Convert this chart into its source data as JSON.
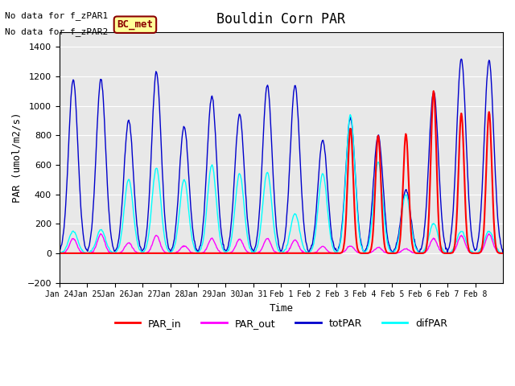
{
  "title": "Bouldin Corn PAR",
  "xlabel": "Time",
  "ylabel": "PAR (umol/m2/s)",
  "ylim": [
    -200,
    1500
  ],
  "yticks": [
    -200,
    0,
    200,
    400,
    600,
    800,
    1000,
    1200,
    1400
  ],
  "no_data_text": [
    "No data for f_zPAR1",
    "No data for f_zPAR2"
  ],
  "bc_met_label": "BC_met",
  "colors": {
    "PAR_in": "#ff0000",
    "PAR_out": "#ff00ff",
    "totPAR": "#0000cc",
    "difPAR": "#00ffff"
  },
  "legend_labels": [
    "PAR_in",
    "PAR_out",
    "totPAR",
    "difPAR"
  ],
  "bg_color": "#e8e8e8",
  "plot_bg": "#e8e8e8",
  "n_days": 16,
  "start_day": 23,
  "day_peaks_totPAR": [
    1180,
    1180,
    900,
    1230,
    860,
    1070,
    940,
    1140,
    1140,
    770,
    920,
    800,
    430,
    1100,
    1320,
    1310
  ],
  "day_peaks_difPAR": [
    150,
    160,
    500,
    580,
    500,
    600,
    540,
    550,
    270,
    540,
    940,
    620,
    400,
    200,
    150,
    150
  ],
  "day_peaks_PAR_out": [
    100,
    130,
    70,
    120,
    50,
    100,
    95,
    100,
    90,
    45,
    50,
    40,
    30,
    100,
    120,
    130
  ],
  "day_peaks_PAR_in": [
    0,
    0,
    0,
    0,
    0,
    0,
    0,
    0,
    0,
    0,
    850,
    800,
    810,
    1100,
    950,
    960
  ],
  "xtick_labels": [
    "Jan 24",
    "Jan 25",
    "Jan 26",
    "Jan 27",
    "Jan 28",
    "Jan 29",
    "Jan 30",
    "Jan 31",
    "Feb 1",
    "Feb 2",
    "Feb 3",
    "Feb 4",
    "Feb 5",
    "Feb 6",
    "Feb 7",
    "Feb 8"
  ],
  "font": "monospace"
}
